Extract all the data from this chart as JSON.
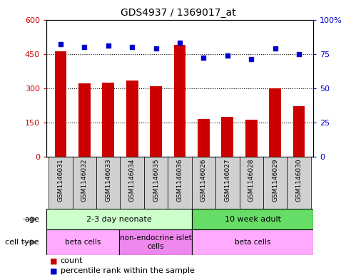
{
  "title": "GDS4937 / 1369017_at",
  "samples": [
    "GSM1146031",
    "GSM1146032",
    "GSM1146033",
    "GSM1146034",
    "GSM1146035",
    "GSM1146036",
    "GSM1146026",
    "GSM1146027",
    "GSM1146028",
    "GSM1146029",
    "GSM1146030"
  ],
  "counts": [
    460,
    320,
    325,
    335,
    308,
    490,
    165,
    175,
    162,
    300,
    220
  ],
  "percentiles": [
    82,
    80,
    81,
    80,
    79,
    83,
    72,
    74,
    71,
    79,
    75
  ],
  "bar_color": "#cc0000",
  "dot_color": "#0000cc",
  "ylim_left": [
    0,
    600
  ],
  "ylim_right": [
    0,
    100
  ],
  "yticks_left": [
    0,
    150,
    300,
    450,
    600
  ],
  "yticks_right": [
    0,
    25,
    50,
    75,
    100
  ],
  "ytick_labels_left": [
    "0",
    "150",
    "300",
    "450",
    "600"
  ],
  "ytick_labels_right": [
    "0",
    "25",
    "50",
    "75",
    "100%"
  ],
  "age_groups": [
    {
      "label": "2-3 day neonate",
      "start": 0,
      "end": 6,
      "color": "#ccffcc"
    },
    {
      "label": "10 week adult",
      "start": 6,
      "end": 11,
      "color": "#66dd66"
    }
  ],
  "cell_type_groups": [
    {
      "label": "beta cells",
      "start": 0,
      "end": 3,
      "color": "#ffaaff"
    },
    {
      "label": "non-endocrine islet\ncells",
      "start": 3,
      "end": 6,
      "color": "#ee88ee"
    },
    {
      "label": "beta cells",
      "start": 6,
      "end": 11,
      "color": "#ffaaff"
    }
  ],
  "legend_count_color": "#cc0000",
  "legend_dot_color": "#0000cc",
  "background_color": "#ffffff",
  "tick_color_left": "#cc0000",
  "tick_color_right": "#0000cc",
  "grid_color": "#000000",
  "bar_width": 0.5,
  "label_box_color": "#d0d0d0"
}
